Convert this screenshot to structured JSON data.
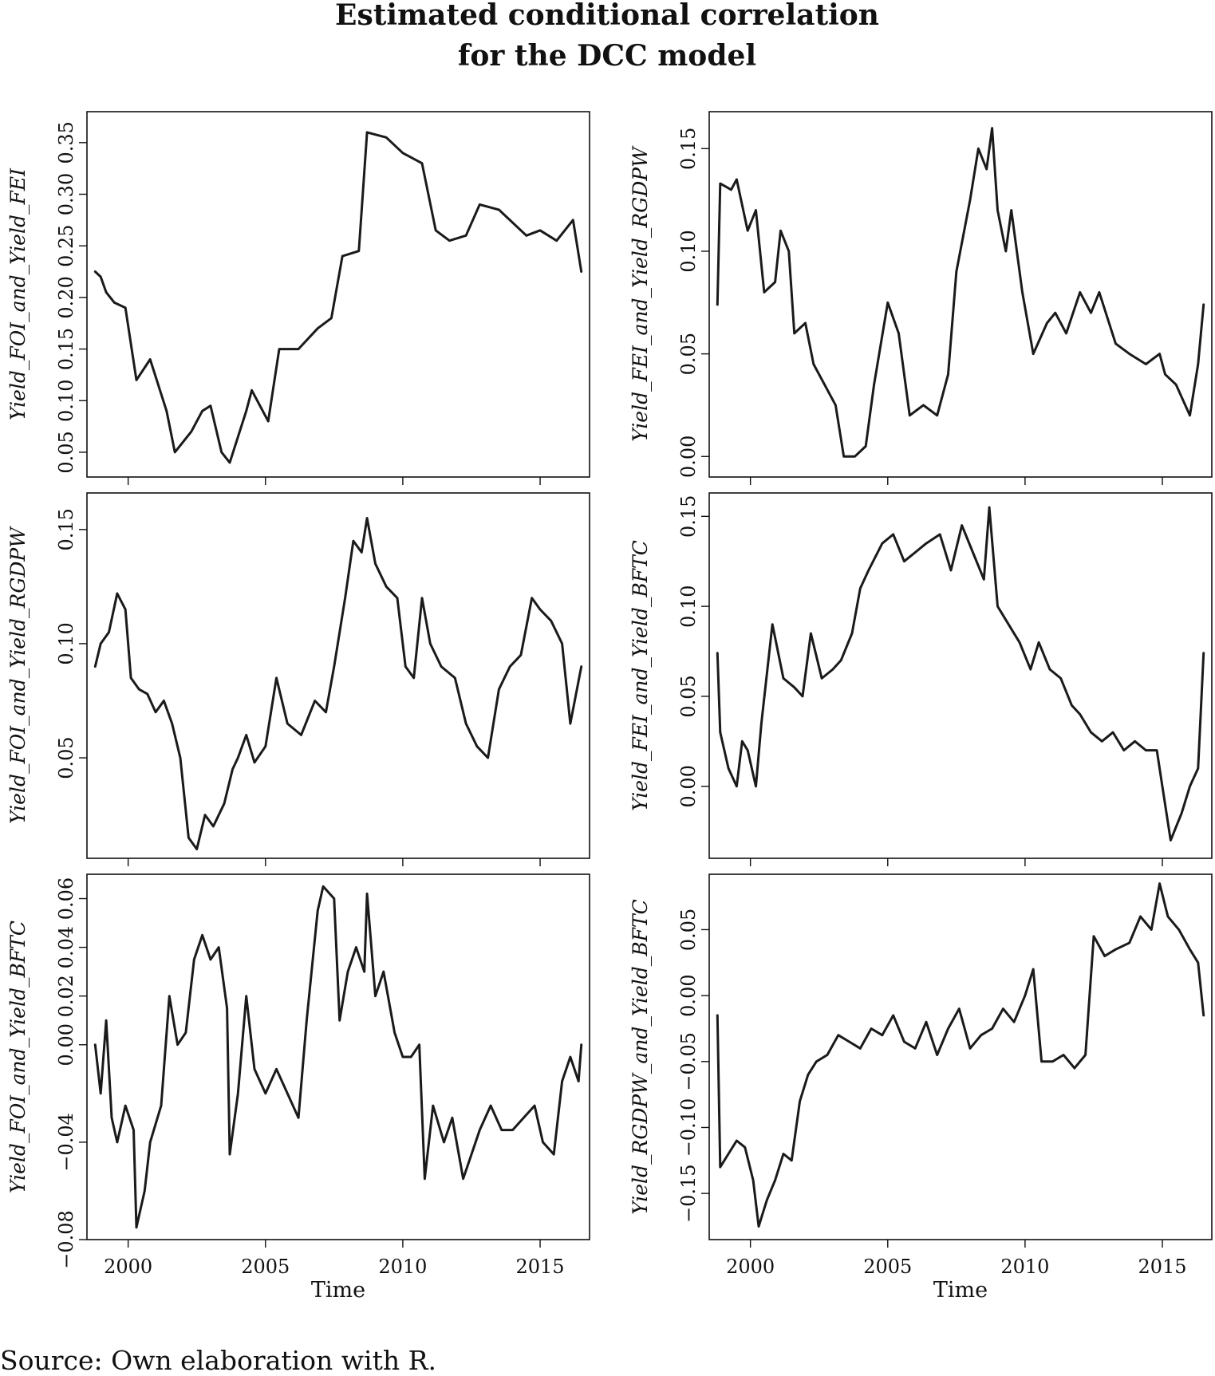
{
  "title_lines": [
    "Estimated conditional correlation",
    "for the DCC model"
  ],
  "source": "Source: Own elaboration with R.",
  "chart_data": [
    {
      "type": "line",
      "ylabel": "Yield_FOI_and_Yield_FEI",
      "xlabel": "",
      "xlim": [
        1998.5,
        2016.8
      ],
      "ylim": [
        0.026,
        0.38
      ],
      "yticks": [
        0.05,
        0.1,
        0.15,
        0.2,
        0.25,
        0.3,
        0.35
      ],
      "ytick_labels": [
        "0.05",
        "0.10",
        "0.15",
        "0.20",
        "0.25",
        "0.30",
        "0.35"
      ],
      "xticks": [
        2000,
        2005,
        2010,
        2015
      ],
      "xtick_labels": [],
      "x": [
        1998.8,
        1999.0,
        1999.2,
        1999.5,
        1999.9,
        2000.3,
        2000.8,
        2001.4,
        2001.7,
        2002.3,
        2002.7,
        2003.0,
        2003.4,
        2003.7,
        2004.3,
        2004.5,
        2005.1,
        2005.5,
        2006.2,
        2006.9,
        2007.4,
        2007.8,
        2008.4,
        2008.7,
        2009.4,
        2010.0,
        2010.7,
        2011.2,
        2011.7,
        2012.3,
        2012.8,
        2013.5,
        2014.5,
        2015.0,
        2015.6,
        2016.2,
        2016.5
      ],
      "y": [
        0.225,
        0.22,
        0.205,
        0.195,
        0.19,
        0.12,
        0.14,
        0.09,
        0.05,
        0.07,
        0.09,
        0.095,
        0.05,
        0.04,
        0.09,
        0.11,
        0.08,
        0.15,
        0.15,
        0.17,
        0.18,
        0.24,
        0.245,
        0.36,
        0.355,
        0.34,
        0.33,
        0.265,
        0.255,
        0.26,
        0.29,
        0.285,
        0.26,
        0.265,
        0.255,
        0.275,
        0.225
      ]
    },
    {
      "type": "line",
      "ylabel": "Yield_FEI_and_Yield_RGDPW",
      "xlabel": "",
      "xlim": [
        1998.5,
        2016.8
      ],
      "ylim": [
        -0.01,
        0.168
      ],
      "yticks": [
        0.0,
        0.05,
        0.1,
        0.15
      ],
      "ytick_labels": [
        "0.00",
        "0.05",
        "0.10",
        "0.15"
      ],
      "xticks": [
        2000,
        2005,
        2010,
        2015
      ],
      "xtick_labels": [],
      "x": [
        1998.8,
        1998.9,
        1999.3,
        1999.5,
        1999.9,
        2000.2,
        2000.5,
        2000.9,
        2001.1,
        2001.4,
        2001.6,
        2002.0,
        2002.3,
        2002.7,
        2003.1,
        2003.4,
        2003.8,
        2004.2,
        2004.5,
        2005.0,
        2005.4,
        2005.8,
        2006.3,
        2006.8,
        2007.2,
        2007.5,
        2008.0,
        2008.3,
        2008.6,
        2008.8,
        2009.0,
        2009.3,
        2009.5,
        2009.9,
        2010.3,
        2010.8,
        2011.1,
        2011.5,
        2012.0,
        2012.4,
        2012.7,
        2013.3,
        2013.8,
        2014.4,
        2014.9,
        2015.1,
        2015.5,
        2016.0,
        2016.3,
        2016.5
      ],
      "y": [
        0.074,
        0.133,
        0.13,
        0.135,
        0.11,
        0.12,
        0.08,
        0.085,
        0.11,
        0.1,
        0.06,
        0.065,
        0.045,
        0.035,
        0.025,
        0.0,
        0.0,
        0.005,
        0.035,
        0.075,
        0.06,
        0.02,
        0.025,
        0.02,
        0.04,
        0.09,
        0.125,
        0.15,
        0.14,
        0.16,
        0.12,
        0.1,
        0.12,
        0.08,
        0.05,
        0.065,
        0.07,
        0.06,
        0.08,
        0.07,
        0.08,
        0.055,
        0.05,
        0.045,
        0.05,
        0.04,
        0.035,
        0.02,
        0.045,
        0.074
      ]
    },
    {
      "type": "line",
      "ylabel": "Yield_FOI_and_Yield_RGDPW",
      "xlabel": "",
      "xlim": [
        1998.5,
        2016.8
      ],
      "ylim": [
        0.006,
        0.166
      ],
      "yticks": [
        0.05,
        0.1,
        0.15
      ],
      "ytick_labels": [
        "0.05",
        "0.10",
        "0.15"
      ],
      "xticks": [
        2000,
        2005,
        2010,
        2015
      ],
      "xtick_labels": [],
      "x": [
        1998.8,
        1999.0,
        1999.3,
        1999.6,
        1999.9,
        2000.1,
        2000.4,
        2000.7,
        2001.0,
        2001.3,
        2001.6,
        2001.9,
        2002.2,
        2002.5,
        2002.8,
        2003.1,
        2003.5,
        2003.8,
        2004.0,
        2004.3,
        2004.6,
        2005.0,
        2005.4,
        2005.8,
        2006.3,
        2006.8,
        2007.2,
        2007.5,
        2007.9,
        2008.2,
        2008.5,
        2008.7,
        2009.0,
        2009.4,
        2009.8,
        2010.1,
        2010.4,
        2010.7,
        2011.0,
        2011.4,
        2011.9,
        2012.3,
        2012.7,
        2013.1,
        2013.5,
        2013.9,
        2014.3,
        2014.7,
        2015.0,
        2015.4,
        2015.8,
        2016.1,
        2016.5
      ],
      "y": [
        0.09,
        0.1,
        0.105,
        0.122,
        0.115,
        0.085,
        0.08,
        0.078,
        0.07,
        0.075,
        0.065,
        0.05,
        0.015,
        0.01,
        0.025,
        0.02,
        0.03,
        0.045,
        0.05,
        0.06,
        0.048,
        0.055,
        0.085,
        0.065,
        0.06,
        0.075,
        0.07,
        0.09,
        0.12,
        0.145,
        0.14,
        0.155,
        0.135,
        0.125,
        0.12,
        0.09,
        0.085,
        0.12,
        0.1,
        0.09,
        0.085,
        0.065,
        0.055,
        0.05,
        0.08,
        0.09,
        0.095,
        0.12,
        0.115,
        0.11,
        0.1,
        0.065,
        0.09
      ]
    },
    {
      "type": "line",
      "ylabel": "Yield_FEI_and_Yield_BFTC",
      "xlabel": "",
      "xlim": [
        1998.5,
        2016.8
      ],
      "ylim": [
        -0.04,
        0.163
      ],
      "yticks": [
        0.0,
        0.05,
        0.1,
        0.15
      ],
      "ytick_labels": [
        "0.00",
        "0.05",
        "0.10",
        "0.15"
      ],
      "xticks": [
        2000,
        2005,
        2010,
        2015
      ],
      "xtick_labels": [],
      "x": [
        1998.8,
        1998.9,
        1999.2,
        1999.5,
        1999.7,
        1999.9,
        2000.2,
        2000.4,
        2000.8,
        2001.2,
        2001.6,
        2001.9,
        2002.2,
        2002.6,
        2003.0,
        2003.3,
        2003.7,
        2004.0,
        2004.3,
        2004.8,
        2005.2,
        2005.6,
        2006.0,
        2006.4,
        2006.9,
        2007.3,
        2007.7,
        2008.1,
        2008.5,
        2008.7,
        2009.0,
        2009.4,
        2009.8,
        2010.2,
        2010.5,
        2010.9,
        2011.3,
        2011.7,
        2012.0,
        2012.4,
        2012.8,
        2013.2,
        2013.6,
        2014.0,
        2014.4,
        2014.8,
        2015.0,
        2015.3,
        2015.7,
        2016.0,
        2016.3,
        2016.5
      ],
      "y": [
        0.074,
        0.03,
        0.01,
        0.0,
        0.025,
        0.02,
        0.0,
        0.035,
        0.09,
        0.06,
        0.055,
        0.05,
        0.085,
        0.06,
        0.065,
        0.07,
        0.085,
        0.11,
        0.12,
        0.135,
        0.14,
        0.125,
        0.13,
        0.135,
        0.14,
        0.12,
        0.145,
        0.13,
        0.115,
        0.155,
        0.1,
        0.09,
        0.08,
        0.065,
        0.08,
        0.065,
        0.06,
        0.045,
        0.04,
        0.03,
        0.025,
        0.03,
        0.02,
        0.025,
        0.02,
        0.02,
        0.0,
        -0.03,
        -0.015,
        0.0,
        0.01,
        0.074
      ]
    },
    {
      "type": "line",
      "ylabel": "Yield_FOI_and_Yield_BFTC",
      "xlabel": "Time",
      "xlim": [
        1998.5,
        2016.8
      ],
      "ylim": [
        -0.08,
        0.07
      ],
      "yticks": [
        -0.08,
        -0.04,
        0.0,
        0.02,
        0.04,
        0.06
      ],
      "ytick_labels": [
        "−0.08",
        "−0.04",
        "0.00",
        "0.02",
        "0.04",
        "0.06"
      ],
      "xticks": [
        2000,
        2005,
        2010,
        2015
      ],
      "xtick_labels": [
        "2000",
        "2005",
        "2010",
        "2015"
      ],
      "x": [
        1998.8,
        1999.0,
        1999.2,
        1999.4,
        1999.6,
        1999.9,
        2000.2,
        2000.3,
        2000.6,
        2000.8,
        2001.2,
        2001.5,
        2001.8,
        2002.1,
        2002.4,
        2002.7,
        2003.0,
        2003.3,
        2003.6,
        2003.7,
        2004.0,
        2004.3,
        2004.6,
        2005.0,
        2005.4,
        2005.8,
        2006.2,
        2006.5,
        2006.9,
        2007.1,
        2007.5,
        2007.7,
        2008.0,
        2008.3,
        2008.6,
        2008.7,
        2009.0,
        2009.3,
        2009.7,
        2010.0,
        2010.3,
        2010.6,
        2010.8,
        2011.1,
        2011.5,
        2011.8,
        2012.2,
        2012.5,
        2012.8,
        2013.2,
        2013.6,
        2014.0,
        2014.4,
        2014.8,
        2015.1,
        2015.5,
        2015.8,
        2016.1,
        2016.4,
        2016.5
      ],
      "y": [
        0.0,
        -0.02,
        0.01,
        -0.03,
        -0.04,
        -0.025,
        -0.035,
        -0.075,
        -0.06,
        -0.04,
        -0.025,
        0.02,
        0.0,
        0.005,
        0.035,
        0.045,
        0.035,
        0.04,
        0.015,
        -0.045,
        -0.02,
        0.02,
        -0.01,
        -0.02,
        -0.01,
        -0.02,
        -0.03,
        0.01,
        0.055,
        0.065,
        0.06,
        0.01,
        0.03,
        0.04,
        0.03,
        0.062,
        0.02,
        0.03,
        0.005,
        -0.005,
        -0.005,
        0.0,
        -0.055,
        -0.025,
        -0.04,
        -0.03,
        -0.055,
        -0.045,
        -0.035,
        -0.025,
        -0.035,
        -0.035,
        -0.03,
        -0.025,
        -0.04,
        -0.045,
        -0.015,
        -0.005,
        -0.015,
        0.0
      ]
    },
    {
      "type": "line",
      "ylabel": "Yield_RGDPW_and_Yield_BFTC",
      "xlabel": "Time",
      "xlim": [
        1998.5,
        2016.8
      ],
      "ylim": [
        -0.185,
        0.092
      ],
      "yticks": [
        -0.15,
        -0.1,
        -0.05,
        0.0,
        0.05
      ],
      "ytick_labels": [
        "−0.15",
        "−0.10",
        "−0.05",
        "0.00",
        "0.05"
      ],
      "xticks": [
        2000,
        2005,
        2010,
        2015
      ],
      "xtick_labels": [
        "2000",
        "2005",
        "2010",
        "2015"
      ],
      "x": [
        1998.8,
        1998.9,
        1999.2,
        1999.5,
        1999.8,
        2000.1,
        2000.3,
        2000.6,
        2000.9,
        2001.2,
        2001.5,
        2001.8,
        2002.1,
        2002.4,
        2002.8,
        2003.2,
        2003.6,
        2004.0,
        2004.4,
        2004.8,
        2005.2,
        2005.6,
        2006.0,
        2006.4,
        2006.8,
        2007.2,
        2007.6,
        2008.0,
        2008.4,
        2008.8,
        2009.2,
        2009.6,
        2010.0,
        2010.3,
        2010.6,
        2011.0,
        2011.4,
        2011.8,
        2012.2,
        2012.5,
        2012.9,
        2013.3,
        2013.8,
        2014.2,
        2014.6,
        2014.9,
        2015.2,
        2015.6,
        2016.0,
        2016.3,
        2016.5
      ],
      "y": [
        -0.015,
        -0.13,
        -0.12,
        -0.11,
        -0.115,
        -0.14,
        -0.175,
        -0.155,
        -0.14,
        -0.12,
        -0.125,
        -0.08,
        -0.06,
        -0.05,
        -0.045,
        -0.03,
        -0.035,
        -0.04,
        -0.025,
        -0.03,
        -0.015,
        -0.035,
        -0.04,
        -0.02,
        -0.045,
        -0.025,
        -0.01,
        -0.04,
        -0.03,
        -0.025,
        -0.01,
        -0.02,
        0.0,
        0.02,
        -0.05,
        -0.05,
        -0.045,
        -0.055,
        -0.045,
        0.045,
        0.03,
        0.035,
        0.04,
        0.06,
        0.05,
        0.085,
        0.06,
        0.05,
        0.035,
        0.025,
        -0.015
      ]
    }
  ]
}
